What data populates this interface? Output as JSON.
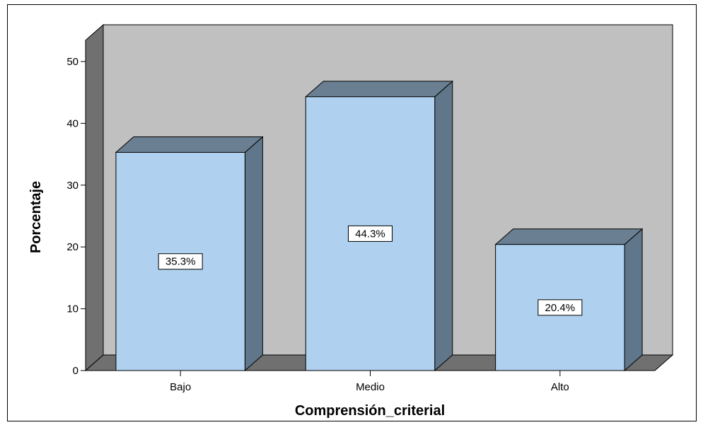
{
  "chart_data": {
    "type": "bar",
    "categories": [
      "Bajo",
      "Medio",
      "Alto"
    ],
    "values": [
      35.3,
      44.3,
      20.4
    ],
    "data_labels": [
      "35.3%",
      "44.3%",
      "20.4%"
    ],
    "xlabel": "Comprensión_criterial",
    "ylabel": "Porcentaje",
    "ylim": [
      0,
      50
    ],
    "yticks": [
      "0",
      "10",
      "20",
      "30",
      "40",
      "50"
    ],
    "style": "3d",
    "grid": false,
    "legend": "none"
  },
  "colors": {
    "bar_front": "#afd0ee",
    "bar_top": "#6a7f92",
    "bar_side": "#60768a",
    "back_wall": "#c0c0c0",
    "left_wall": "#707070",
    "floor": "#707070"
  }
}
